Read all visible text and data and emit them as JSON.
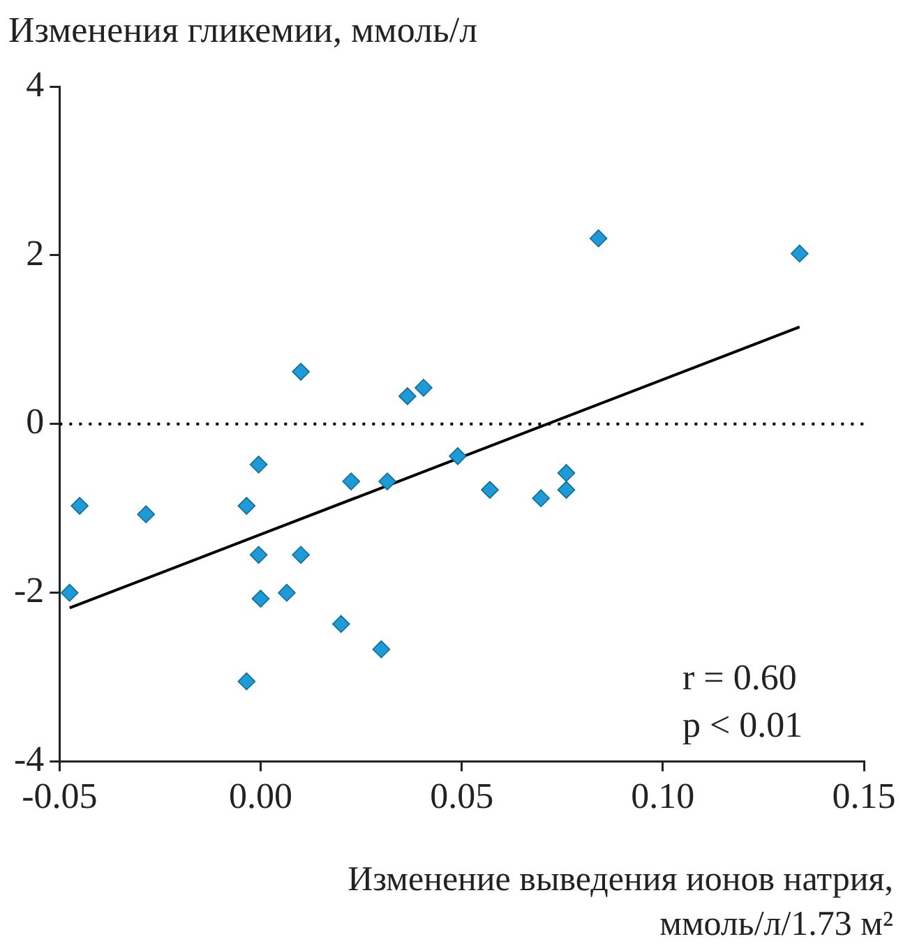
{
  "chart_data": {
    "type": "scatter",
    "ylabel": "Изменения гликемии, ммоль/л",
    "xlabel": "Изменение выведения ионов натрия, ммоль/л/1.73 м²",
    "xlim": [
      -0.05,
      0.15
    ],
    "xticks": [
      {
        "value": -0.05,
        "label": "-0.05"
      },
      {
        "value": 0,
        "label": "0.00"
      },
      {
        "value": 0.05,
        "label": "0.05"
      },
      {
        "value": 0.1,
        "label": "0.10"
      },
      {
        "value": 0.15,
        "label": "0.15"
      }
    ],
    "ylim": [
      -4,
      4
    ],
    "yticks": [
      -4,
      -2,
      0,
      2,
      4
    ],
    "grid": false,
    "legend": false,
    "marker": "diamond",
    "series": [
      {
        "type": "scatter",
        "color": "#1e9ad6",
        "x": [
          -0.0475,
          -0.045,
          -0.0285,
          -0.0035,
          -0.0005,
          -0.0005,
          0,
          -0.0035,
          0.0065,
          0.01,
          0.01,
          0.02,
          0.0225,
          0.03,
          0.0315,
          0.0365,
          0.0405,
          0.049,
          0.057,
          0.0697,
          0.076,
          0.076,
          0.084,
          0.134
        ],
        "values": [
          -2.0,
          -0.97,
          -1.07,
          -0.97,
          -0.48,
          -1.55,
          -2.07,
          -3.05,
          -2.0,
          0.62,
          -1.55,
          -2.37,
          -0.68,
          -2.67,
          -0.68,
          0.33,
          0.43,
          -0.38,
          -0.78,
          -0.88,
          -0.58,
          -0.78,
          2.2,
          2.02
        ]
      },
      {
        "type": "line",
        "color": "#000000",
        "marker": "none",
        "line_style": "solid",
        "x": [
          -0.0475,
          0.134
        ],
        "values": [
          -2.18,
          1.15
        ]
      }
    ],
    "ref_lines": [
      {
        "axis": "y",
        "value": 0,
        "color": "#000000",
        "line_style": "dotted"
      }
    ],
    "annotations": [
      "r = 0.60",
      "p < 0.01"
    ]
  }
}
